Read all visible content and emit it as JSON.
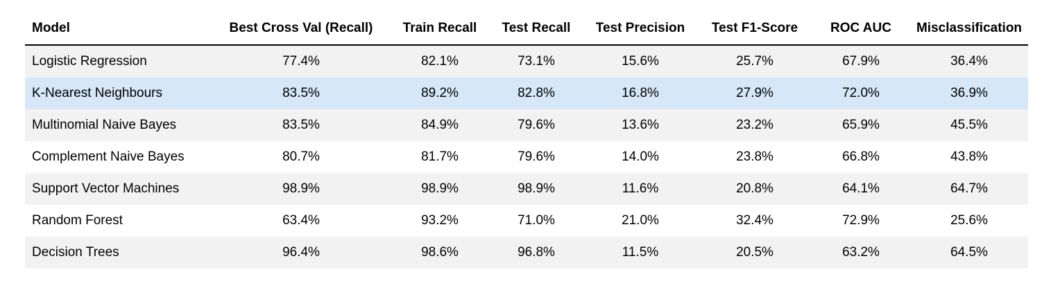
{
  "table": {
    "headers": [
      "Model",
      "Best Cross Val (Recall)",
      "Train Recall",
      "Test Recall",
      "Test Precision",
      "Test F1-Score",
      "ROC AUC",
      "Misclassification"
    ],
    "rows": [
      [
        "Logistic Regression",
        "77.4%",
        "82.1%",
        "73.1%",
        "15.6%",
        "25.7%",
        "67.9%",
        "36.4%"
      ],
      [
        "K-Nearest Neighbours",
        "83.5%",
        "89.2%",
        "82.8%",
        "16.8%",
        "27.9%",
        "72.0%",
        "36.9%"
      ],
      [
        "Multinomial Naive Bayes",
        "83.5%",
        "84.9%",
        "79.6%",
        "13.6%",
        "23.2%",
        "65.9%",
        "45.5%"
      ],
      [
        "Complement Naive Bayes",
        "80.7%",
        "81.7%",
        "79.6%",
        "14.0%",
        "23.8%",
        "66.8%",
        "43.8%"
      ],
      [
        "Support Vector Machines",
        "98.9%",
        "98.9%",
        "98.9%",
        "11.6%",
        "20.8%",
        "64.1%",
        "64.7%"
      ],
      [
        "Random Forest",
        "63.4%",
        "93.2%",
        "71.0%",
        "21.0%",
        "32.4%",
        "72.9%",
        "25.6%"
      ],
      [
        "Decision Trees",
        "96.4%",
        "98.6%",
        "96.8%",
        "11.5%",
        "20.5%",
        "63.2%",
        "64.5%"
      ]
    ],
    "highlighted_row": 1,
    "colors": {
      "stripe": "#f2f2f2",
      "highlight": "#d6e7f7",
      "rule": "#000000"
    }
  }
}
